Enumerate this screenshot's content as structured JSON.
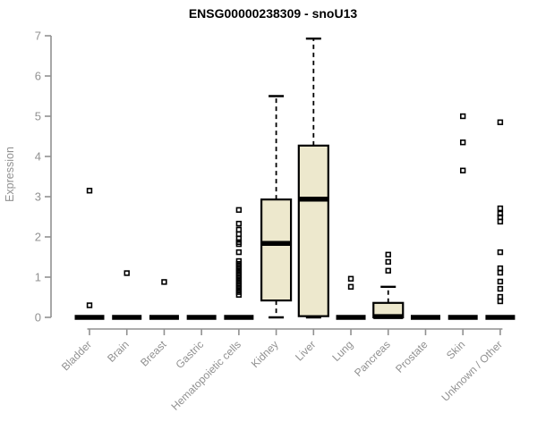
{
  "title": "ENSG00000238309 - snoU13",
  "ylabel": "Expression",
  "chart_data": {
    "type": "boxplot",
    "title": "ENSG00000238309 - snoU13",
    "xlabel": "",
    "ylabel": "Expression",
    "ylim": [
      0,
      7
    ],
    "yticks": [
      0,
      1,
      2,
      3,
      4,
      5,
      6,
      7
    ],
    "grid": false,
    "legend": "none",
    "categories": [
      "Bladder",
      "Brain",
      "Breast",
      "Gastric",
      "Hematopoietic cells",
      "Kidney",
      "Liver",
      "Lung",
      "Pancreas",
      "Prostate",
      "Skin",
      "Unknown / Other"
    ],
    "series": [
      {
        "name": "Bladder",
        "min": 0,
        "q1": 0,
        "median": 0,
        "q3": 0,
        "max": 0,
        "outliers": [
          0.3,
          3.15
        ]
      },
      {
        "name": "Brain",
        "min": 0,
        "q1": 0,
        "median": 0,
        "q3": 0,
        "max": 0,
        "outliers": [
          1.1
        ]
      },
      {
        "name": "Breast",
        "min": 0,
        "q1": 0,
        "median": 0,
        "q3": 0,
        "max": 0,
        "outliers": [
          0.88
        ]
      },
      {
        "name": "Gastric",
        "min": 0,
        "q1": 0,
        "median": 0,
        "q3": 0,
        "max": 0,
        "outliers": []
      },
      {
        "name": "Hematopoietic cells",
        "min": 0,
        "q1": 0,
        "median": 0,
        "q3": 0,
        "max": 0,
        "outliers": [
          0.56,
          0.63,
          0.7,
          0.77,
          0.84,
          0.91,
          0.98,
          1.05,
          1.12,
          1.19,
          1.26,
          1.33,
          1.4,
          1.62,
          1.82,
          1.87,
          1.96,
          2.07,
          2.18,
          2.33,
          2.67
        ]
      },
      {
        "name": "Kidney",
        "min": 0,
        "q1": 0.42,
        "median": 1.84,
        "q3": 2.93,
        "max": 5.5,
        "outliers": []
      },
      {
        "name": "Liver",
        "min": 0,
        "q1": 0.03,
        "median": 2.94,
        "q3": 4.27,
        "max": 6.93,
        "outliers": []
      },
      {
        "name": "Lung",
        "min": 0,
        "q1": 0,
        "median": 0,
        "q3": 0,
        "max": 0,
        "outliers": [
          0.76,
          0.96
        ]
      },
      {
        "name": "Pancreas",
        "min": 0,
        "q1": 0,
        "median": 0.02,
        "q3": 0.36,
        "max": 0.76,
        "outliers": [
          1.16,
          1.38,
          1.56
        ]
      },
      {
        "name": "Prostate",
        "min": 0,
        "q1": 0,
        "median": 0,
        "q3": 0,
        "max": 0,
        "outliers": []
      },
      {
        "name": "Skin",
        "min": 0,
        "q1": 0,
        "median": 0,
        "q3": 0,
        "max": 0,
        "outliers": [
          3.65,
          4.35,
          5.0
        ]
      },
      {
        "name": "Unknown / Other",
        "min": 0,
        "q1": 0,
        "median": 0,
        "q3": 0,
        "max": 0,
        "outliers": [
          0.4,
          0.51,
          0.71,
          0.89,
          1.11,
          1.22,
          1.62,
          2.38,
          2.49,
          2.58,
          2.71,
          4.85
        ]
      }
    ],
    "colors": {
      "box_fill": "#EDE8CD",
      "box_stroke": "#000000",
      "median": "#000000",
      "whisker": "#000000",
      "outlier": "#000000",
      "axis": "#919191",
      "tick_label": "#919191",
      "title": "#000000"
    }
  }
}
